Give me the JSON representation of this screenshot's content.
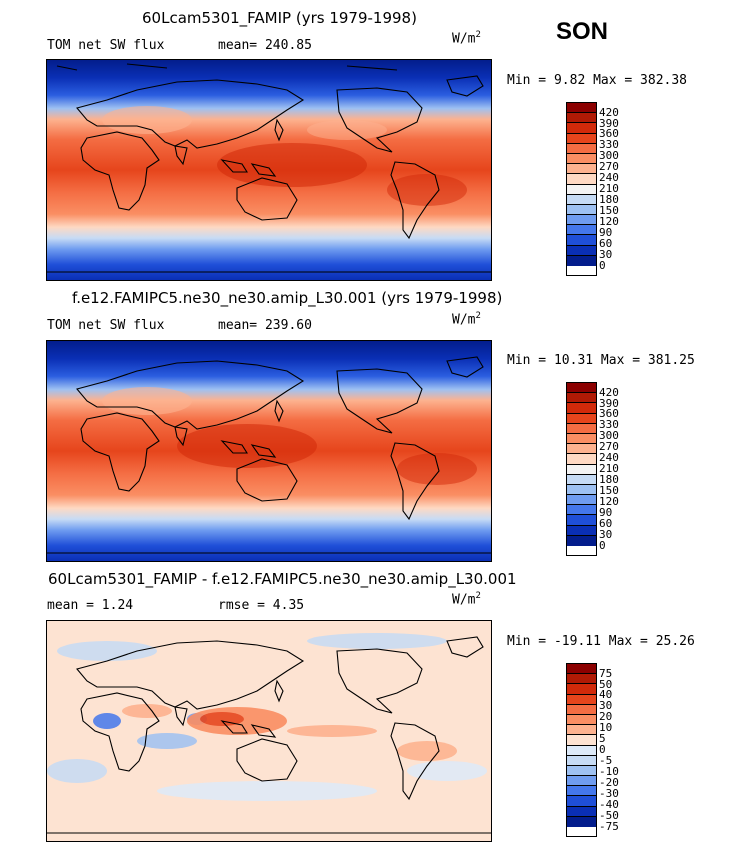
{
  "season": "SON",
  "units_base": "W/m",
  "units_exp": "2",
  "panels": [
    {
      "title": "60Lcam5301_FAMIP (yrs 1979-1998)",
      "left_label": "TOM net SW flux",
      "center_label": "mean= 240.85",
      "minmax": "Min =   9.82 Max = 382.38",
      "colorbar_labels": [
        "420",
        "390",
        "360",
        "330",
        "300",
        "270",
        "240",
        "210",
        "180",
        "150",
        "120",
        "90",
        "60",
        "30",
        "0"
      ]
    },
    {
      "title": "f.e12.FAMIPC5.ne30_ne30.amip_L30.001 (yrs 1979-1998)",
      "left_label": "TOM net SW flux",
      "center_label": "mean= 239.60",
      "minmax": "Min =  10.31 Max = 381.25",
      "colorbar_labels": [
        "420",
        "390",
        "360",
        "330",
        "300",
        "270",
        "240",
        "210",
        "180",
        "150",
        "120",
        "90",
        "60",
        "30",
        "0"
      ]
    },
    {
      "title": "60Lcam5301_FAMIP - f.e12.FAMIPC5.ne30_ne30.amip_L30.001",
      "left_label": "mean =    1.24",
      "center_label": "rmse =    4.35",
      "minmax": "Min = -19.11 Max =  25.26",
      "colorbar_labels": [
        "75",
        "50",
        "40",
        "30",
        "20",
        "10",
        "5",
        "0",
        "-5",
        "-10",
        "-20",
        "-30",
        "-40",
        "-50",
        "-75"
      ]
    }
  ],
  "colors": {
    "field_scale": [
      "#8b0000",
      "#b01a05",
      "#d12a0a",
      "#e6451c",
      "#f46d43",
      "#fa8e63",
      "#fdb28f",
      "#fed9c3",
      "#f3f3f3",
      "#c6dbf5",
      "#9ec1f2",
      "#6f9cf0",
      "#4477ec",
      "#1f4fd8",
      "#0a2fb5",
      "#031d8c"
    ],
    "diff_scale": [
      "#8b0000",
      "#b01a05",
      "#d12a0a",
      "#e6451c",
      "#f46d43",
      "#fa8e63",
      "#fdb28f",
      "#fde3d2",
      "#ddeaf9",
      "#c6dbf5",
      "#9ec1f2",
      "#6f9cf0",
      "#4477ec",
      "#1f4fd8",
      "#0a2fb5",
      "#031d8c"
    ]
  }
}
